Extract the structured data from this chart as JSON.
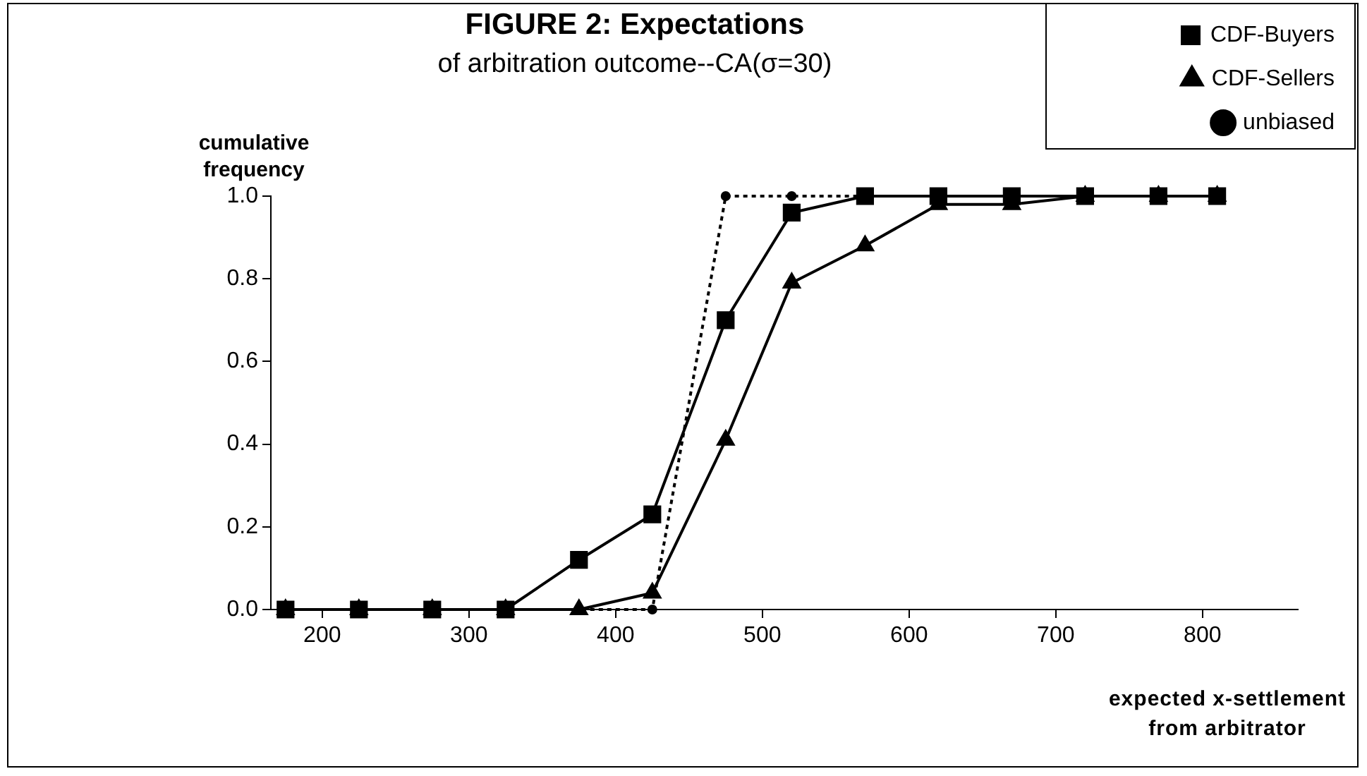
{
  "chart_data": {
    "type": "line",
    "title": "FIGURE 2: Expectations",
    "subtitle": "of arbitration outcome--CA(σ=30)",
    "xlabel": "expected x-settlement from arbitrator",
    "ylabel": "cumulative frequency",
    "x": [
      175,
      225,
      275,
      325,
      375,
      425,
      475,
      520,
      570,
      620,
      670,
      720,
      770,
      810
    ],
    "series": [
      {
        "name": "CDF-Buyers",
        "color": "#000000",
        "marker": "square",
        "line_style": "solid",
        "values": [
          0,
          0,
          0,
          0,
          0.12,
          0.23,
          0.7,
          0.96,
          1,
          1,
          1,
          1,
          1,
          1
        ]
      },
      {
        "name": "CDF-Sellers",
        "color": "#000000",
        "marker": "triangle",
        "line_style": "solid",
        "values": [
          0,
          0,
          0,
          0,
          0,
          0.04,
          0.41,
          0.79,
          0.88,
          0.98,
          0.98,
          1,
          1,
          1
        ]
      },
      {
        "name": "unbiased",
        "color": "#000000",
        "marker": "circle",
        "line_style": "dotted",
        "values": [
          0,
          0,
          0,
          0,
          0,
          0,
          1,
          1,
          1,
          1,
          1,
          1,
          1,
          1
        ]
      }
    ],
    "xlim": [
      165,
      865
    ],
    "xticks": [
      200,
      300,
      400,
      500,
      600,
      700,
      800
    ],
    "ylim": [
      0,
      1
    ],
    "yticks": [
      {
        "value": 0,
        "label": "0.0"
      },
      {
        "value": 0.2,
        "label": "0.2"
      },
      {
        "value": 0.4,
        "label": "0.4"
      },
      {
        "value": 0.6,
        "label": "0.6"
      },
      {
        "value": 0.8,
        "label": "0.8"
      },
      {
        "value": 1,
        "label": "1.0"
      }
    ],
    "grid": false,
    "legend": "top right"
  }
}
